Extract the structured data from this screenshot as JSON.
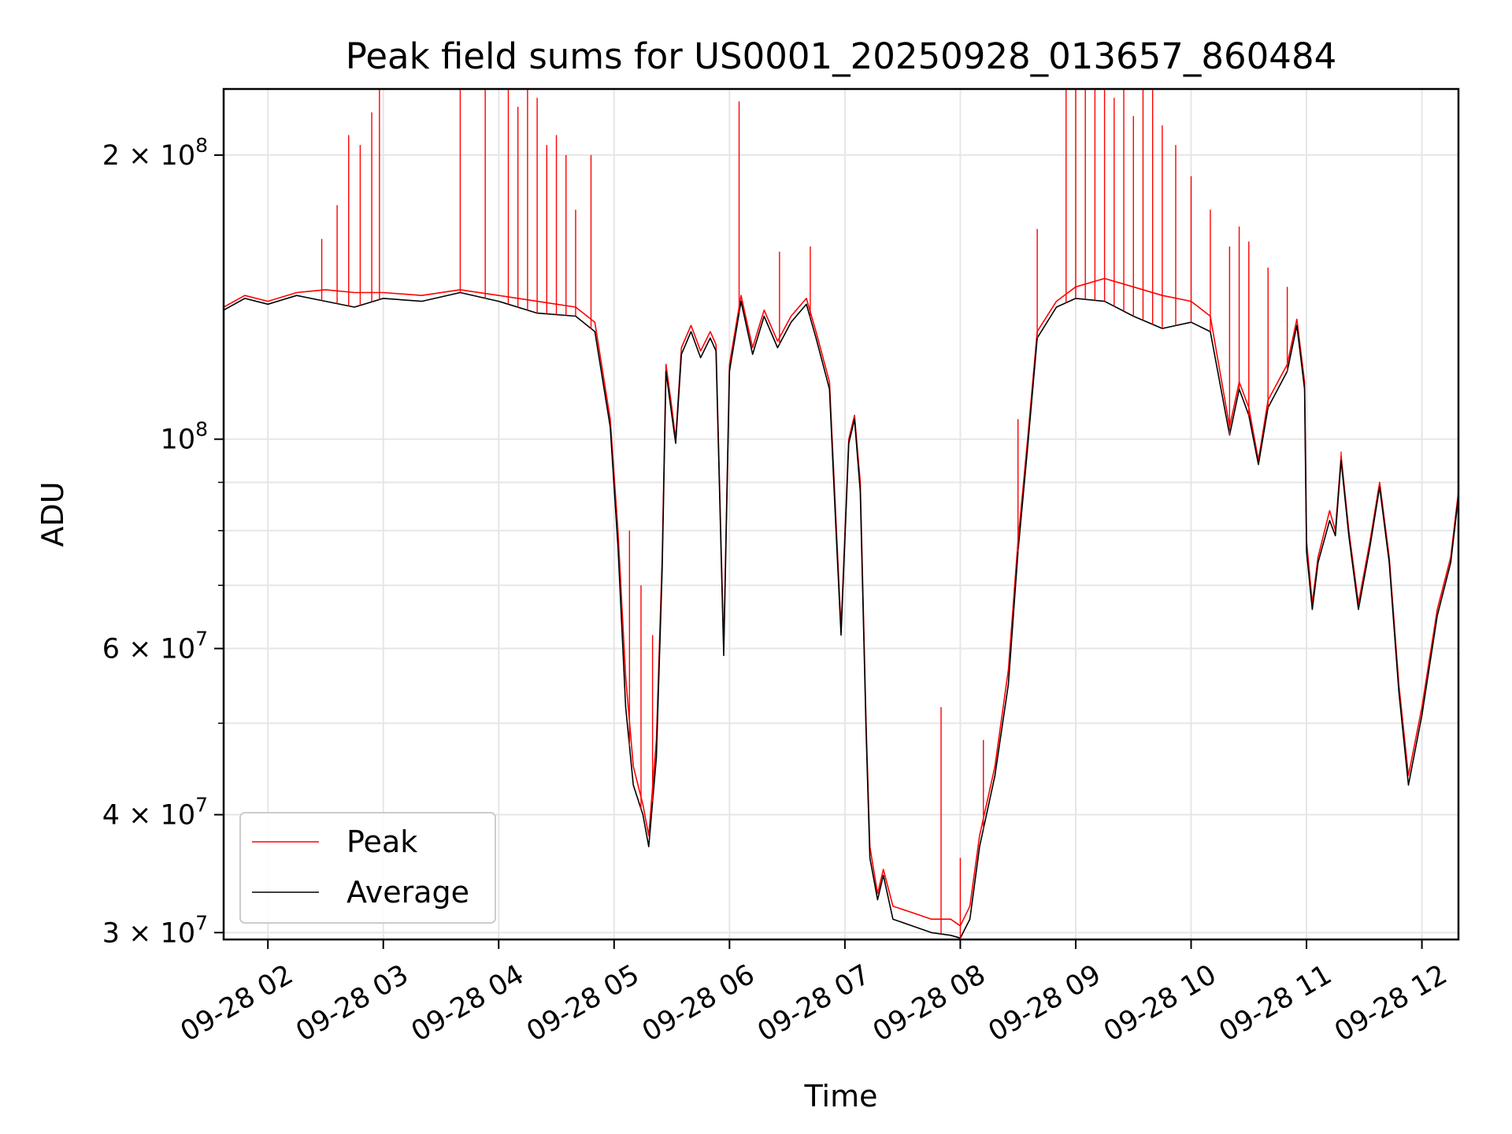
{
  "chart_data": {
    "type": "line",
    "title": "Peak field sums for US0001_20250928_013657_860484",
    "xlabel": "Time",
    "ylabel": "ADU",
    "y_scale": "log",
    "ylim": [
      29500000,
      235000000
    ],
    "xlim": [
      "2025-09-28 01:37",
      "2025-09-28 12:19"
    ],
    "grid": true,
    "legend_position": "lower-left",
    "x_ticks": [
      {
        "t": "2025-09-28 02:00",
        "label": "09-28 02"
      },
      {
        "t": "2025-09-28 03:00",
        "label": "09-28 03"
      },
      {
        "t": "2025-09-28 04:00",
        "label": "09-28 04"
      },
      {
        "t": "2025-09-28 05:00",
        "label": "09-28 05"
      },
      {
        "t": "2025-09-28 06:00",
        "label": "09-28 06"
      },
      {
        "t": "2025-09-28 07:00",
        "label": "09-28 07"
      },
      {
        "t": "2025-09-28 08:00",
        "label": "09-28 08"
      },
      {
        "t": "2025-09-28 09:00",
        "label": "09-28 09"
      },
      {
        "t": "2025-09-28 10:00",
        "label": "09-28 10"
      },
      {
        "t": "2025-09-28 11:00",
        "label": "09-28 11"
      },
      {
        "t": "2025-09-28 12:00",
        "label": "09-28 12"
      }
    ],
    "y_ticks": [
      {
        "v": 30000000,
        "mant": "3",
        "exp": "7"
      },
      {
        "v": 40000000,
        "mant": "4",
        "exp": "7"
      },
      {
        "v": 60000000,
        "mant": "6",
        "exp": "7"
      },
      {
        "v": 100000000,
        "mant": "",
        "exp": "8"
      },
      {
        "v": 200000000,
        "mant": "2",
        "exp": "8"
      }
    ],
    "y_minor_grid": [
      50000000,
      70000000,
      80000000,
      90000000
    ],
    "series": [
      {
        "name": "Peak",
        "color": "#ff0000",
        "points": [
          [
            "2025-09-28 01:37",
            138000000
          ],
          [
            "2025-09-28 01:48",
            142000000
          ],
          [
            "2025-09-28 02:00",
            140000000
          ],
          [
            "2025-09-28 02:15",
            143000000
          ],
          [
            "2025-09-28 02:30",
            144000000
          ],
          [
            "2025-09-28 02:45",
            143000000
          ],
          [
            "2025-09-28 03:00",
            143000000
          ],
          [
            "2025-09-28 03:20",
            142000000
          ],
          [
            "2025-09-28 03:40",
            144000000
          ],
          [
            "2025-09-28 04:00",
            142000000
          ],
          [
            "2025-09-28 04:20",
            140000000
          ],
          [
            "2025-09-28 04:40",
            138000000
          ],
          [
            "2025-09-28 04:50",
            133000000
          ],
          [
            "2025-09-28 04:58",
            105000000
          ],
          [
            "2025-09-28 05:02",
            80000000
          ],
          [
            "2025-09-28 05:06",
            56000000
          ],
          [
            "2025-09-28 05:10",
            45000000
          ],
          [
            "2025-09-28 05:15",
            41000000
          ],
          [
            "2025-09-28 05:18",
            38000000
          ],
          [
            "2025-09-28 05:22",
            48000000
          ],
          [
            "2025-09-28 05:25",
            75000000
          ],
          [
            "2025-09-28 05:27",
            120000000
          ],
          [
            "2025-09-28 05:30",
            108000000
          ],
          [
            "2025-09-28 05:32",
            100000000
          ],
          [
            "2025-09-28 05:35",
            125000000
          ],
          [
            "2025-09-28 05:40",
            132000000
          ],
          [
            "2025-09-28 05:45",
            124000000
          ],
          [
            "2025-09-28 05:50",
            130000000
          ],
          [
            "2025-09-28 05:53",
            126000000
          ],
          [
            "2025-09-28 05:57",
            60000000
          ],
          [
            "2025-09-28 06:00",
            120000000
          ],
          [
            "2025-09-28 06:06",
            142000000
          ],
          [
            "2025-09-28 06:12",
            125000000
          ],
          [
            "2025-09-28 06:18",
            137000000
          ],
          [
            "2025-09-28 06:25",
            127000000
          ],
          [
            "2025-09-28 06:32",
            135000000
          ],
          [
            "2025-09-28 06:40",
            141000000
          ],
          [
            "2025-09-28 06:45",
            130000000
          ],
          [
            "2025-09-28 06:52",
            115000000
          ],
          [
            "2025-09-28 06:55",
            85000000
          ],
          [
            "2025-09-28 06:58",
            63000000
          ],
          [
            "2025-09-28 07:02",
            100000000
          ],
          [
            "2025-09-28 07:05",
            106000000
          ],
          [
            "2025-09-28 07:08",
            90000000
          ],
          [
            "2025-09-28 07:11",
            50000000
          ],
          [
            "2025-09-28 07:13",
            37000000
          ],
          [
            "2025-09-28 07:17",
            33000000
          ],
          [
            "2025-09-28 07:20",
            35000000
          ],
          [
            "2025-09-28 07:25",
            32000000
          ],
          [
            "2025-09-28 07:35",
            31500000
          ],
          [
            "2025-09-28 07:45",
            31000000
          ],
          [
            "2025-09-28 07:55",
            31000000
          ],
          [
            "2025-09-28 08:00",
            30500000
          ],
          [
            "2025-09-28 08:05",
            32000000
          ],
          [
            "2025-09-28 08:10",
            38000000
          ],
          [
            "2025-09-28 08:18",
            45000000
          ],
          [
            "2025-09-28 08:25",
            57000000
          ],
          [
            "2025-09-28 08:30",
            78000000
          ],
          [
            "2025-09-28 08:35",
            100000000
          ],
          [
            "2025-09-28 08:40",
            130000000
          ],
          [
            "2025-09-28 08:50",
            140000000
          ],
          [
            "2025-09-28 09:00",
            145000000
          ],
          [
            "2025-09-28 09:15",
            148000000
          ],
          [
            "2025-09-28 09:30",
            145000000
          ],
          [
            "2025-09-28 09:45",
            142000000
          ],
          [
            "2025-09-28 10:00",
            140000000
          ],
          [
            "2025-09-28 10:10",
            135000000
          ],
          [
            "2025-09-28 10:20",
            103000000
          ],
          [
            "2025-09-28 10:25",
            115000000
          ],
          [
            "2025-09-28 10:30",
            108000000
          ],
          [
            "2025-09-28 10:35",
            95000000
          ],
          [
            "2025-09-28 10:40",
            110000000
          ],
          [
            "2025-09-28 10:50",
            120000000
          ],
          [
            "2025-09-28 10:55",
            134000000
          ],
          [
            "2025-09-28 10:59",
            115000000
          ],
          [
            "2025-09-28 11:00",
            78000000
          ],
          [
            "2025-09-28 11:03",
            67000000
          ],
          [
            "2025-09-28 11:06",
            75000000
          ],
          [
            "2025-09-28 11:12",
            84000000
          ],
          [
            "2025-09-28 11:15",
            80000000
          ],
          [
            "2025-09-28 11:18",
            96000000
          ],
          [
            "2025-09-28 11:22",
            80000000
          ],
          [
            "2025-09-28 11:27",
            67000000
          ],
          [
            "2025-09-28 11:33",
            78000000
          ],
          [
            "2025-09-28 11:38",
            90000000
          ],
          [
            "2025-09-28 11:43",
            75000000
          ],
          [
            "2025-09-28 11:48",
            55000000
          ],
          [
            "2025-09-28 11:53",
            44000000
          ],
          [
            "2025-09-28 12:00",
            52000000
          ],
          [
            "2025-09-28 12:08",
            66000000
          ],
          [
            "2025-09-28 12:15",
            75000000
          ],
          [
            "2025-09-28 12:19",
            88000000
          ]
        ]
      },
      {
        "name": "Average",
        "color": "#000000",
        "points": [
          [
            "2025-09-28 01:37",
            137000000
          ],
          [
            "2025-09-28 01:48",
            141000000
          ],
          [
            "2025-09-28 02:00",
            139000000
          ],
          [
            "2025-09-28 02:15",
            142000000
          ],
          [
            "2025-09-28 02:30",
            140000000
          ],
          [
            "2025-09-28 02:45",
            138000000
          ],
          [
            "2025-09-28 03:00",
            141000000
          ],
          [
            "2025-09-28 03:20",
            140000000
          ],
          [
            "2025-09-28 03:40",
            143000000
          ],
          [
            "2025-09-28 04:00",
            140000000
          ],
          [
            "2025-09-28 04:20",
            136000000
          ],
          [
            "2025-09-28 04:40",
            135000000
          ],
          [
            "2025-09-28 04:50",
            130000000
          ],
          [
            "2025-09-28 04:58",
            103000000
          ],
          [
            "2025-09-28 05:02",
            77000000
          ],
          [
            "2025-09-28 05:06",
            52000000
          ],
          [
            "2025-09-28 05:10",
            43000000
          ],
          [
            "2025-09-28 05:15",
            40000000
          ],
          [
            "2025-09-28 05:18",
            37000000
          ],
          [
            "2025-09-28 05:22",
            46000000
          ],
          [
            "2025-09-28 05:25",
            73000000
          ],
          [
            "2025-09-28 05:27",
            118000000
          ],
          [
            "2025-09-28 05:30",
            106000000
          ],
          [
            "2025-09-28 05:32",
            99000000
          ],
          [
            "2025-09-28 05:35",
            123000000
          ],
          [
            "2025-09-28 05:40",
            130000000
          ],
          [
            "2025-09-28 05:45",
            122000000
          ],
          [
            "2025-09-28 05:50",
            128000000
          ],
          [
            "2025-09-28 05:53",
            124000000
          ],
          [
            "2025-09-28 05:57",
            59000000
          ],
          [
            "2025-09-28 06:00",
            118000000
          ],
          [
            "2025-09-28 06:06",
            140000000
          ],
          [
            "2025-09-28 06:12",
            123000000
          ],
          [
            "2025-09-28 06:18",
            135000000
          ],
          [
            "2025-09-28 06:25",
            125000000
          ],
          [
            "2025-09-28 06:32",
            133000000
          ],
          [
            "2025-09-28 06:40",
            139000000
          ],
          [
            "2025-09-28 06:45",
            128000000
          ],
          [
            "2025-09-28 06:52",
            113000000
          ],
          [
            "2025-09-28 06:55",
            83000000
          ],
          [
            "2025-09-28 06:58",
            62000000
          ],
          [
            "2025-09-28 07:02",
            99000000
          ],
          [
            "2025-09-28 07:05",
            105000000
          ],
          [
            "2025-09-28 07:08",
            88000000
          ],
          [
            "2025-09-28 07:11",
            49000000
          ],
          [
            "2025-09-28 07:13",
            36000000
          ],
          [
            "2025-09-28 07:17",
            32500000
          ],
          [
            "2025-09-28 07:20",
            34500000
          ],
          [
            "2025-09-28 07:25",
            31000000
          ],
          [
            "2025-09-28 07:35",
            30500000
          ],
          [
            "2025-09-28 07:45",
            30000000
          ],
          [
            "2025-09-28 07:55",
            29800000
          ],
          [
            "2025-09-28 08:00",
            29600000
          ],
          [
            "2025-09-28 08:05",
            31000000
          ],
          [
            "2025-09-28 08:10",
            37000000
          ],
          [
            "2025-09-28 08:18",
            44000000
          ],
          [
            "2025-09-28 08:25",
            55000000
          ],
          [
            "2025-09-28 08:30",
            76000000
          ],
          [
            "2025-09-28 08:35",
            98000000
          ],
          [
            "2025-09-28 08:40",
            128000000
          ],
          [
            "2025-09-28 08:50",
            138000000
          ],
          [
            "2025-09-28 09:00",
            141000000
          ],
          [
            "2025-09-28 09:15",
            140000000
          ],
          [
            "2025-09-28 09:30",
            135000000
          ],
          [
            "2025-09-28 09:45",
            131000000
          ],
          [
            "2025-09-28 10:00",
            133000000
          ],
          [
            "2025-09-28 10:10",
            130000000
          ],
          [
            "2025-09-28 10:20",
            101000000
          ],
          [
            "2025-09-28 10:25",
            113000000
          ],
          [
            "2025-09-28 10:30",
            106000000
          ],
          [
            "2025-09-28 10:35",
            94000000
          ],
          [
            "2025-09-28 10:40",
            108000000
          ],
          [
            "2025-09-28 10:50",
            118000000
          ],
          [
            "2025-09-28 10:55",
            132000000
          ],
          [
            "2025-09-28 10:59",
            113000000
          ],
          [
            "2025-09-28 11:00",
            76000000
          ],
          [
            "2025-09-28 11:03",
            66000000
          ],
          [
            "2025-09-28 11:06",
            74000000
          ],
          [
            "2025-09-28 11:12",
            82000000
          ],
          [
            "2025-09-28 11:15",
            79000000
          ],
          [
            "2025-09-28 11:18",
            95000000
          ],
          [
            "2025-09-28 11:22",
            79000000
          ],
          [
            "2025-09-28 11:27",
            66000000
          ],
          [
            "2025-09-28 11:33",
            77000000
          ],
          [
            "2025-09-28 11:38",
            89000000
          ],
          [
            "2025-09-28 11:43",
            74000000
          ],
          [
            "2025-09-28 11:48",
            54000000
          ],
          [
            "2025-09-28 11:53",
            43000000
          ],
          [
            "2025-09-28 12:00",
            51000000
          ],
          [
            "2025-09-28 12:08",
            65000000
          ],
          [
            "2025-09-28 12:15",
            74000000
          ],
          [
            "2025-09-28 12:19",
            87000000
          ]
        ]
      }
    ],
    "peak_spikes": [
      [
        "2025-09-28 02:28",
        163000000
      ],
      [
        "2025-09-28 02:36",
        177000000
      ],
      [
        "2025-09-28 02:42",
        210000000
      ],
      [
        "2025-09-28 02:48",
        205000000
      ],
      [
        "2025-09-28 02:54",
        222000000
      ],
      [
        "2025-09-28 02:58",
        235000000
      ],
      [
        "2025-09-28 03:40",
        235000000
      ],
      [
        "2025-09-28 03:53",
        235000000
      ],
      [
        "2025-09-28 04:05",
        235000000
      ],
      [
        "2025-09-28 04:10",
        225000000
      ],
      [
        "2025-09-28 04:15",
        235000000
      ],
      [
        "2025-09-28 04:20",
        230000000
      ],
      [
        "2025-09-28 04:25",
        205000000
      ],
      [
        "2025-09-28 04:30",
        210000000
      ],
      [
        "2025-09-28 04:35",
        200000000
      ],
      [
        "2025-09-28 04:40",
        175000000
      ],
      [
        "2025-09-28 04:48",
        200000000
      ],
      [
        "2025-09-28 05:08",
        80000000
      ],
      [
        "2025-09-28 05:14",
        70000000
      ],
      [
        "2025-09-28 05:20",
        62000000
      ],
      [
        "2025-09-28 06:05",
        228000000
      ],
      [
        "2025-09-28 06:26",
        158000000
      ],
      [
        "2025-09-28 06:42",
        160000000
      ],
      [
        "2025-09-28 07:50",
        52000000
      ],
      [
        "2025-09-28 08:00",
        36000000
      ],
      [
        "2025-09-28 08:12",
        48000000
      ],
      [
        "2025-09-28 08:30",
        105000000
      ],
      [
        "2025-09-28 08:40",
        167000000
      ],
      [
        "2025-09-28 08:55",
        235000000
      ],
      [
        "2025-09-28 09:00",
        235000000
      ],
      [
        "2025-09-28 09:05",
        235000000
      ],
      [
        "2025-09-28 09:10",
        235000000
      ],
      [
        "2025-09-28 09:15",
        235000000
      ],
      [
        "2025-09-28 09:20",
        230000000
      ],
      [
        "2025-09-28 09:25",
        235000000
      ],
      [
        "2025-09-28 09:30",
        220000000
      ],
      [
        "2025-09-28 09:35",
        235000000
      ],
      [
        "2025-09-28 09:40",
        235000000
      ],
      [
        "2025-09-28 09:45",
        215000000
      ],
      [
        "2025-09-28 09:52",
        205000000
      ],
      [
        "2025-09-28 10:00",
        190000000
      ],
      [
        "2025-09-28 10:10",
        175000000
      ],
      [
        "2025-09-28 10:20",
        160000000
      ],
      [
        "2025-09-28 10:25",
        168000000
      ],
      [
        "2025-09-28 10:30",
        162000000
      ],
      [
        "2025-09-28 10:40",
        152000000
      ],
      [
        "2025-09-28 10:50",
        145000000
      ],
      [
        "2025-09-28 11:18",
        97000000
      ]
    ]
  }
}
